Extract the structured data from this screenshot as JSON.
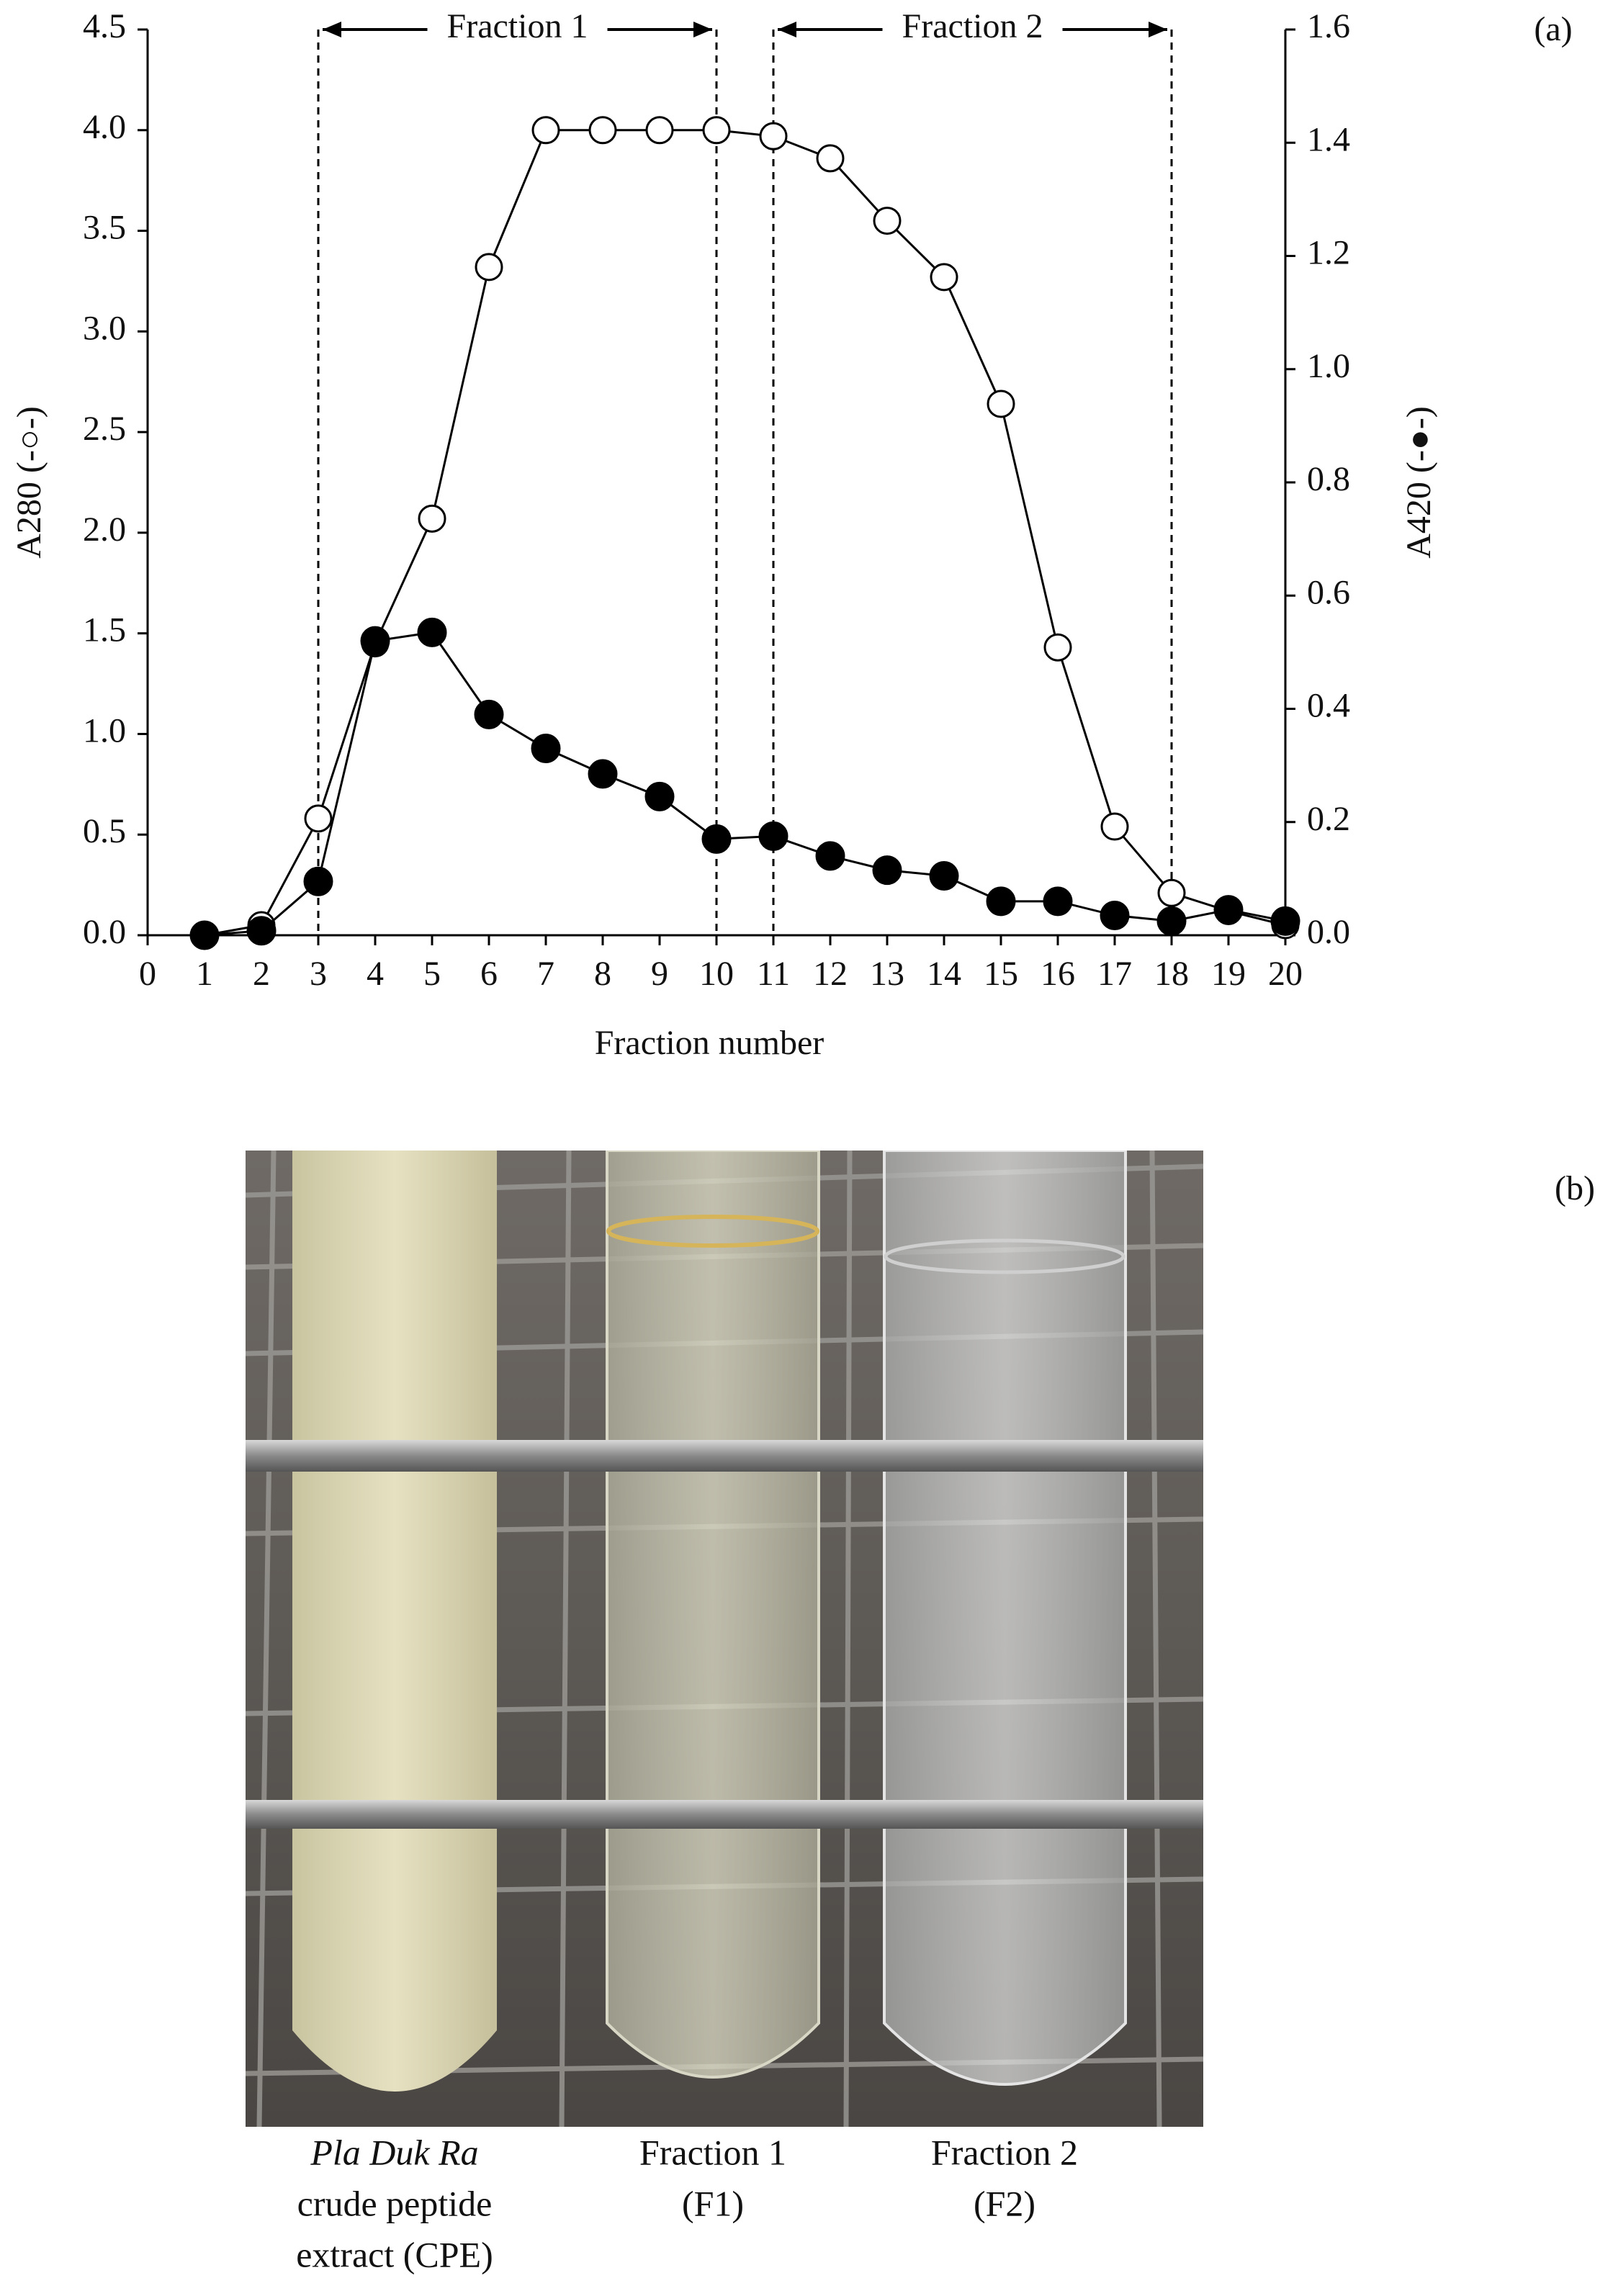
{
  "chart_data": {
    "type": "line",
    "panel_label": "(a)",
    "xlabel": "Fraction number",
    "ylabel": "A280 (-○-)",
    "y2label": "A420 (-●-)",
    "xlim": [
      0,
      20
    ],
    "xticks": [
      0,
      1,
      2,
      3,
      4,
      5,
      6,
      7,
      8,
      9,
      10,
      11,
      12,
      13,
      14,
      15,
      16,
      17,
      18,
      19,
      20
    ],
    "ylim": [
      0,
      4.5
    ],
    "yticks": [
      {
        "value": 0,
        "label": "0.0"
      },
      {
        "value": 0.5,
        "label": "0.5"
      },
      {
        "value": 1,
        "label": "1.0"
      },
      {
        "value": 1.5,
        "label": "1.5"
      },
      {
        "value": 2,
        "label": "2.0"
      },
      {
        "value": 2.5,
        "label": "2.5"
      },
      {
        "value": 3,
        "label": "3.0"
      },
      {
        "value": 3.5,
        "label": "3.5"
      },
      {
        "value": 4,
        "label": "4.0"
      },
      {
        "value": 4.5,
        "label": "4.5"
      }
    ],
    "y2lim": [
      0,
      1.6
    ],
    "y2ticks": [
      {
        "value": 0,
        "label": "0.0"
      },
      {
        "value": 0.2,
        "label": "0.2"
      },
      {
        "value": 0.4,
        "label": "0.4"
      },
      {
        "value": 0.6,
        "label": "0.6"
      },
      {
        "value": 0.8,
        "label": "0.8"
      },
      {
        "value": 1,
        "label": "1.0"
      },
      {
        "value": 1.2,
        "label": "1.2"
      },
      {
        "value": 1.4,
        "label": "1.4"
      },
      {
        "value": 1.6,
        "label": "1.6"
      }
    ],
    "x": [
      1,
      2,
      3,
      4,
      5,
      6,
      7,
      8,
      9,
      10,
      11,
      12,
      13,
      14,
      15,
      16,
      17,
      18,
      19,
      20
    ],
    "series": [
      {
        "name": "A280",
        "marker": "open",
        "color": "#000000",
        "axis": "y",
        "values": [
          0.0,
          0.05,
          0.58,
          1.45,
          2.07,
          3.32,
          4.0,
          4.0,
          4.0,
          4.0,
          3.97,
          3.86,
          3.55,
          3.27,
          2.64,
          1.43,
          0.54,
          0.21,
          0.12,
          0.05
        ]
      },
      {
        "name": "A420",
        "marker": "filled",
        "color": "#000000",
        "axis": "y2",
        "values": [
          0.0,
          0.008,
          0.095,
          0.52,
          0.535,
          0.39,
          0.33,
          0.285,
          0.245,
          0.17,
          0.175,
          0.14,
          0.115,
          0.105,
          0.06,
          0.06,
          0.035,
          0.025,
          0.045,
          0.025
        ]
      }
    ],
    "regions": [
      {
        "label": "Fraction 1",
        "start": 3,
        "end": 10
      },
      {
        "label": "Fraction 2",
        "start": 11,
        "end": 18
      }
    ]
  },
  "photo": {
    "panel_label": "(b)",
    "captions": [
      {
        "italic": "Pla Duk Ra",
        "lines": [
          "crude peptide",
          "extract (CPE)"
        ]
      },
      {
        "lines": [
          "Fraction 1",
          "(F1)"
        ]
      },
      {
        "lines": [
          "Fraction 2",
          "(F2)"
        ]
      }
    ]
  }
}
